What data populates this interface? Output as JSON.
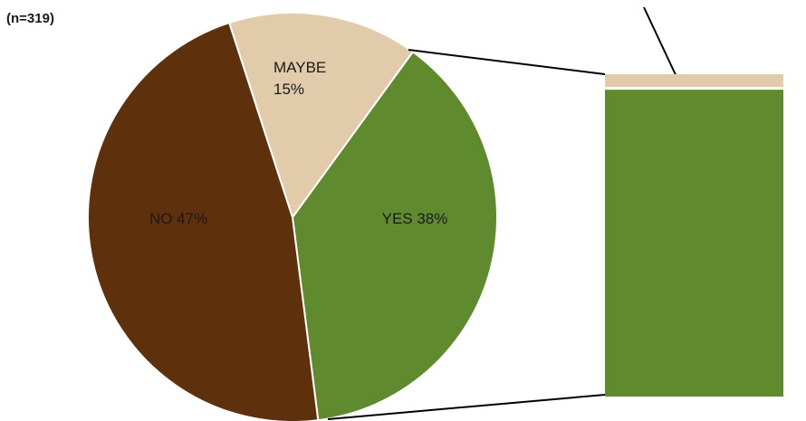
{
  "chart_data": {
    "type": "pie",
    "note": "(n=319)",
    "slices": [
      {
        "label": "YES",
        "value": 38,
        "display": "YES 38%",
        "color": "#5f8a2e"
      },
      {
        "label": "NO",
        "value": 47,
        "display": "NO 47%",
        "color": "#5e300b"
      },
      {
        "label": "MAYBE",
        "value": 15,
        "display_lines": [
          "MAYBE",
          "15%"
        ],
        "color": "#e2cbaa"
      }
    ],
    "breakdown_bar": {
      "of_slice": "YES",
      "segments": [
        {
          "color": "#e2cbaa",
          "share": 0.04
        },
        {
          "color": "#5f8a2e",
          "share": 0.96
        }
      ]
    }
  }
}
